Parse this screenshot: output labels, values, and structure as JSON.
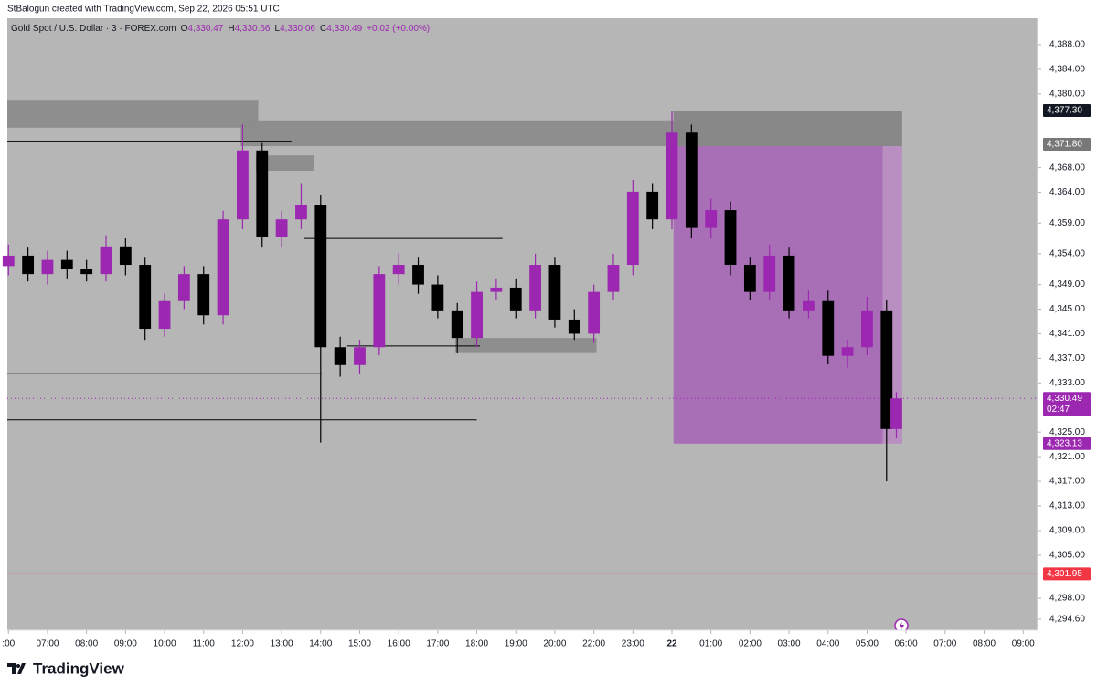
{
  "credit": "StBalogun created with TradingView.com, Sep 22, 2026 05:51 UTC",
  "brand": "TradingView",
  "chart_data": {
    "type": "candlestick",
    "title": "Gold Spot / U.S. Dollar · 3 · FOREX.com",
    "ohlc": [
      {
        "key": "O",
        "value": "4,330.47"
      },
      {
        "key": "H",
        "value": "4,330.66"
      },
      {
        "key": "L",
        "value": "4,330.06"
      },
      {
        "key": "C",
        "value": "4,330.49"
      }
    ],
    "change": "+0.02 (+0.00%)",
    "up_color": "#9c27b0",
    "down_color": "#000000",
    "x": [
      0,
      0.5,
      1,
      1.5,
      2,
      2.5,
      3,
      3.5,
      4,
      4.5,
      5,
      5.5,
      6,
      6.5,
      7,
      7.5,
      8,
      8.5,
      9,
      9.5,
      10,
      10.5,
      11,
      11.5,
      12,
      12.5,
      13,
      13.5,
      14,
      14.5,
      15,
      15.5,
      16,
      16.5,
      17,
      17.5,
      18,
      18.5,
      19,
      19.5,
      20,
      20.5,
      21,
      21.5,
      22,
      22.5,
      22.75
    ],
    "open": [
      4352,
      4353.7,
      4350.7,
      4353,
      4351.5,
      4350.7,
      4355.2,
      4352.2,
      4341.8,
      4346.3,
      4350.7,
      4344,
      4359.6,
      4370.8,
      4356.7,
      4359.6,
      4362,
      4338.8,
      4335.9,
      4338.8,
      4350.7,
      4352.2,
      4349,
      4344.8,
      4340.3,
      4347.8,
      4348.5,
      4344.8,
      4352.2,
      4343.3,
      4341,
      4347.8,
      4352.2,
      4364.1,
      4359.6,
      4373.7,
      4358.2,
      4361.1,
      4352.2,
      4347.8,
      4353.7,
      4344.8,
      4346.3,
      4337.4,
      4338.8,
      4344.8,
      4325.5
    ],
    "high": [
      4355.5,
      4355,
      4354.5,
      4354.5,
      4353,
      4357,
      4356.5,
      4353.5,
      4347.5,
      4352,
      4352,
      4361,
      4375,
      4372,
      4361,
      4365.5,
      4363.5,
      4340.5,
      4340,
      4352,
      4354,
      4353.5,
      4350.5,
      4346,
      4349.5,
      4350,
      4350,
      4354,
      4353.5,
      4345,
      4349,
      4354,
      4366,
      4365.5,
      4377.3,
      4375,
      4363,
      4362.5,
      4353.5,
      4355.5,
      4355,
      4348,
      4348,
      4340,
      4347,
      4346.5,
      4331.5
    ],
    "low": [
      4350.5,
      4349.5,
      4349,
      4350,
      4349.5,
      4349.5,
      4350.5,
      4340,
      4340.5,
      4345,
      4342.5,
      4342.5,
      4358,
      4355,
      4355,
      4358,
      4323.3,
      4334,
      4334.5,
      4337.5,
      4349,
      4347.5,
      4343.5,
      4337.8,
      4338.8,
      4346.5,
      4343.5,
      4343.5,
      4342,
      4340,
      4339.5,
      4346.5,
      4350.5,
      4358,
      4358,
      4356.5,
      4356.5,
      4350.5,
      4346.5,
      4346.5,
      4343.5,
      4343.5,
      4336,
      4335.5,
      4337.5,
      4317,
      4324
    ],
    "close": [
      4353.7,
      4350.7,
      4353,
      4351.5,
      4350.7,
      4355.2,
      4352.2,
      4341.8,
      4346.3,
      4350.7,
      4344,
      4359.6,
      4370.8,
      4356.7,
      4359.6,
      4362,
      4338.8,
      4335.9,
      4338.8,
      4350.7,
      4352.2,
      4349,
      4344.8,
      4340.3,
      4347.8,
      4348.5,
      4344.8,
      4352.2,
      4343.3,
      4341,
      4347.8,
      4352.2,
      4364.1,
      4359.6,
      4373.7,
      4358.2,
      4361.1,
      4352.2,
      4347.8,
      4353.7,
      4344.8,
      4346.3,
      4337.4,
      4338.8,
      4344.8,
      4325.5,
      4330.49
    ],
    "xlim": [
      -0.03,
      26.37
    ],
    "xticks": [
      {
        "value": 0,
        "label": ":00"
      },
      {
        "value": 1,
        "label": "07:00"
      },
      {
        "value": 2,
        "label": "08:00"
      },
      {
        "value": 3,
        "label": "09:00"
      },
      {
        "value": 4,
        "label": "10:00"
      },
      {
        "value": 5,
        "label": "11:00"
      },
      {
        "value": 6,
        "label": "12:00"
      },
      {
        "value": 7,
        "label": "13:00"
      },
      {
        "value": 8,
        "label": "14:00"
      },
      {
        "value": 9,
        "label": "15:00"
      },
      {
        "value": 10,
        "label": "16:00"
      },
      {
        "value": 11,
        "label": "17:00"
      },
      {
        "value": 12,
        "label": "18:00"
      },
      {
        "value": 13,
        "label": "19:00"
      },
      {
        "value": 14,
        "label": "20:00"
      },
      {
        "value": 15,
        "label": "22:00"
      },
      {
        "value": 16,
        "label": "23:00"
      },
      {
        "value": 17,
        "label": "22"
      },
      {
        "value": 18,
        "label": "01:00"
      },
      {
        "value": 19,
        "label": "02:00"
      },
      {
        "value": 20,
        "label": "03:00"
      },
      {
        "value": 21,
        "label": "04:00"
      },
      {
        "value": 22,
        "label": "05:00"
      },
      {
        "value": 23,
        "label": "06:00"
      },
      {
        "value": 24,
        "label": "07:00"
      },
      {
        "value": 25,
        "label": "08:00"
      },
      {
        "value": 26,
        "label": "09:00"
      }
    ],
    "ylim": [
      4292.8,
      4392.3
    ],
    "yticks": [
      {
        "value": 4388,
        "label": "4,388.00"
      },
      {
        "value": 4384,
        "label": "4,384.00"
      },
      {
        "value": 4380,
        "label": "4,380.00"
      },
      {
        "value": 4368,
        "label": "4,368.00"
      },
      {
        "value": 4364,
        "label": "4,364.00"
      },
      {
        "value": 4359,
        "label": "4,359.00"
      },
      {
        "value": 4354,
        "label": "4,354.00"
      },
      {
        "value": 4349,
        "label": "4,349.00"
      },
      {
        "value": 4345,
        "label": "4,345.00"
      },
      {
        "value": 4341,
        "label": "4,341.00"
      },
      {
        "value": 4337,
        "label": "4,337.00"
      },
      {
        "value": 4333,
        "label": "4,333.00"
      },
      {
        "value": 4325,
        "label": "4,325.00"
      },
      {
        "value": 4321,
        "label": "4,321.00"
      },
      {
        "value": 4317,
        "label": "4,317.00"
      },
      {
        "value": 4313,
        "label": "4,313.00"
      },
      {
        "value": 4309,
        "label": "4,309.00"
      },
      {
        "value": 4305,
        "label": "4,305.00"
      },
      {
        "value": 4298,
        "label": "4,298.00"
      },
      {
        "value": 4294.6,
        "label": "4,294.60"
      }
    ],
    "zones": [
      {
        "x": [
          -0.03,
          6.4
        ],
        "y": [
          4378.9,
          4374.5
        ],
        "color": "#8c8c8c"
      },
      {
        "x": [
          5.95,
          17.4
        ],
        "y": [
          4375.7,
          4371.5
        ],
        "color": "#8c8c8c"
      },
      {
        "x": [
          6.34,
          7.84
        ],
        "y": [
          4370,
          4367.5
        ],
        "color": "#8c8c8c"
      },
      {
        "x": [
          11.45,
          15.07
        ],
        "y": [
          4340.3,
          4338
        ],
        "color": "#8c8c8c"
      },
      {
        "x": [
          17.04,
          22.4
        ],
        "y": [
          4371.5,
          4323.13
        ],
        "color": "#a86ab6"
      },
      {
        "x": [
          22.4,
          22.9
        ],
        "y": [
          4371.5,
          4323.13
        ],
        "color": "#b98dc3"
      },
      {
        "x": [
          17.04,
          22.9
        ],
        "y": [
          4377.3,
          4371.5
        ],
        "color": "#868686"
      }
    ],
    "lines": [
      {
        "x": [
          -0.03,
          7.25
        ],
        "y": 4372.3
      },
      {
        "x": [
          7.58,
          12.66
        ],
        "y": 4356.5
      },
      {
        "x": [
          8.68,
          12.08
        ],
        "y": 4339
      },
      {
        "x": [
          -0.03,
          8.03
        ],
        "y": 4334.5
      },
      {
        "x": [
          -0.03,
          12.0
        ],
        "y": 4327
      }
    ],
    "levels": [
      {
        "value": 4301.95,
        "color": "#f23645",
        "dash": false
      },
      {
        "value": 4330.49,
        "color": "#9c27b0",
        "dash": true
      }
    ],
    "price_labels": [
      {
        "value": 4377.3,
        "label": "4,377.30",
        "color": "#131722"
      },
      {
        "value": 4371.8,
        "label": "4,371.80",
        "color": "#787878"
      },
      {
        "value": 4330.49,
        "label": "4,330.49",
        "color": "#9c27b0"
      },
      {
        "value": 4323.13,
        "label": "4,323.13",
        "color": "#9c27b0"
      },
      {
        "value": 4301.95,
        "label": "4,301.95",
        "color": "#f23645"
      }
    ],
    "countdown": "02:47"
  }
}
